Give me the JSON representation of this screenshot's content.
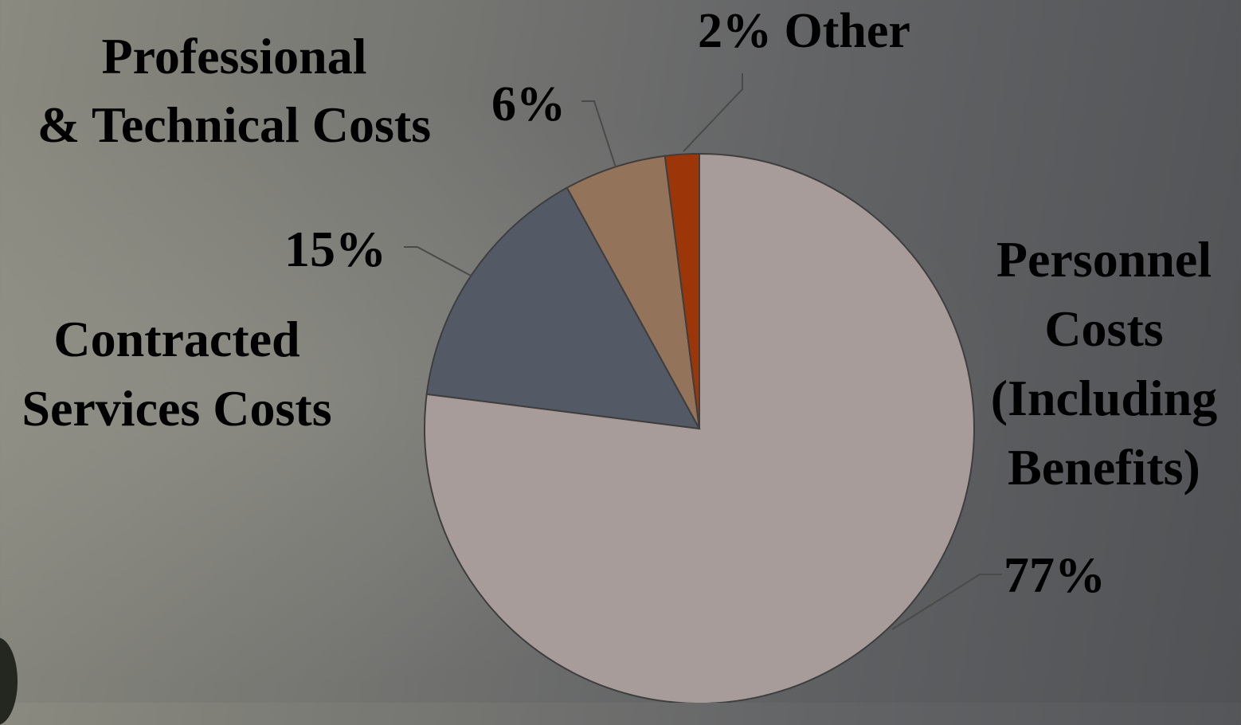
{
  "chart_data": {
    "type": "pie",
    "start": "12 o'clock",
    "direction": "clockwise",
    "slices": [
      {
        "category": "Personnel Costs (Including Benefits)",
        "value": 77,
        "value_label": "77%",
        "color": "#a89c9a"
      },
      {
        "category": "Contracted Services Costs",
        "value": 15,
        "value_label": "15%",
        "color": "#545966"
      },
      {
        "category": "Professional & Technical Costs",
        "value": 6,
        "value_label": "6%",
        "color": "#93735a"
      },
      {
        "category": "Other",
        "value": 2,
        "value_label": "2%",
        "color": "#9c3608"
      }
    ],
    "labels": {
      "personnel": "Personnel\nCosts\n(Including\nBenefits)",
      "contracted": "Contracted\nServices Costs",
      "professional": "Professional\n& Technical Costs",
      "other": "2% Other"
    }
  }
}
